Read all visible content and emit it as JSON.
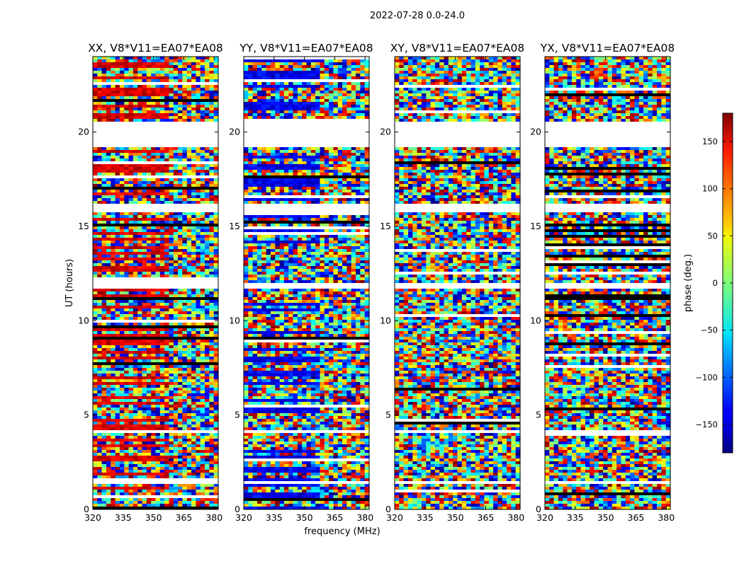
{
  "chart_data": {
    "type": "heatmap",
    "suptitle": "2022-07-28 0.0-24.0",
    "xlabel": "frequency (MHz)",
    "ylabel": "UT (hours)",
    "xlim": [
      320,
      382
    ],
    "ylim": [
      0,
      24
    ],
    "xticks": [
      "320",
      "335",
      "350",
      "365",
      "380"
    ],
    "yticks": [
      "0",
      "5",
      "10",
      "15",
      "20"
    ],
    "colorbar": {
      "label": "phase (deg.)",
      "range": [
        -180,
        180
      ],
      "ticks": [
        "150",
        "100",
        "50",
        "0",
        "−50",
        "−100",
        "−150"
      ],
      "colormap": "jet"
    },
    "panels": [
      {
        "title": "XX, V8*V11=EA07*EA08"
      },
      {
        "title": "YY, V8*V11=EA07*EA08"
      },
      {
        "title": "XY, V8*V11=EA07*EA08"
      },
      {
        "title": "YX, V8*V11=EA07*EA08"
      }
    ],
    "flagged_gaps_ut_hours": [
      [
        20.3,
        20.5
      ],
      [
        19.2,
        20.3
      ],
      [
        15.8,
        16.2
      ],
      [
        11.7,
        12.0
      ],
      [
        4.0,
        4.2
      ],
      [
        1.3,
        1.5
      ]
    ]
  }
}
